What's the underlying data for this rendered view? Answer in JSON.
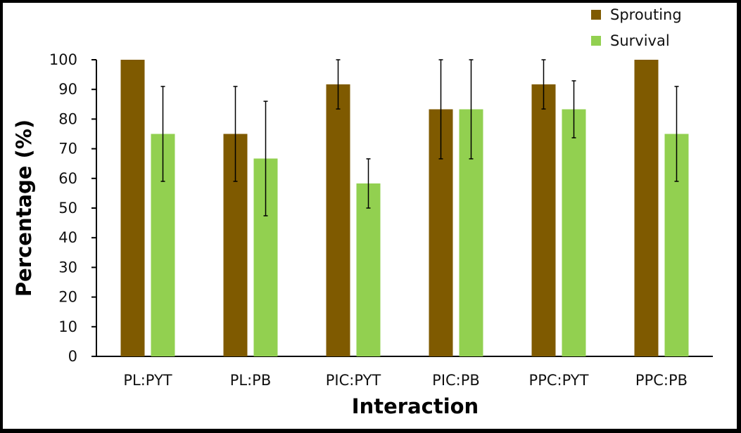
{
  "chart_data": {
    "type": "bar",
    "title": "",
    "xlabel": "Interaction",
    "ylabel": "Percentage (%)",
    "ylim": [
      0,
      100
    ],
    "yticks": [
      0,
      10,
      20,
      30,
      40,
      50,
      60,
      70,
      80,
      90,
      100
    ],
    "grid": false,
    "legend_position": "top-right",
    "categories": [
      "PL:PYT",
      "PL:PB",
      "PIC:PYT",
      "PIC:PB",
      "PPC:PYT",
      "PPC:PB"
    ],
    "series": [
      {
        "name": "Sprouting",
        "color": "#7f5a00",
        "values": [
          100,
          75,
          91.7,
          83.3,
          91.7,
          100
        ],
        "error": [
          0,
          16,
          8.3,
          16.7,
          8.3,
          0
        ]
      },
      {
        "name": "Survival",
        "color": "#92d050",
        "values": [
          75,
          66.7,
          58.3,
          83.3,
          83.3,
          75
        ],
        "error": [
          16,
          19.3,
          8.3,
          16.7,
          9.6,
          16
        ]
      }
    ]
  }
}
